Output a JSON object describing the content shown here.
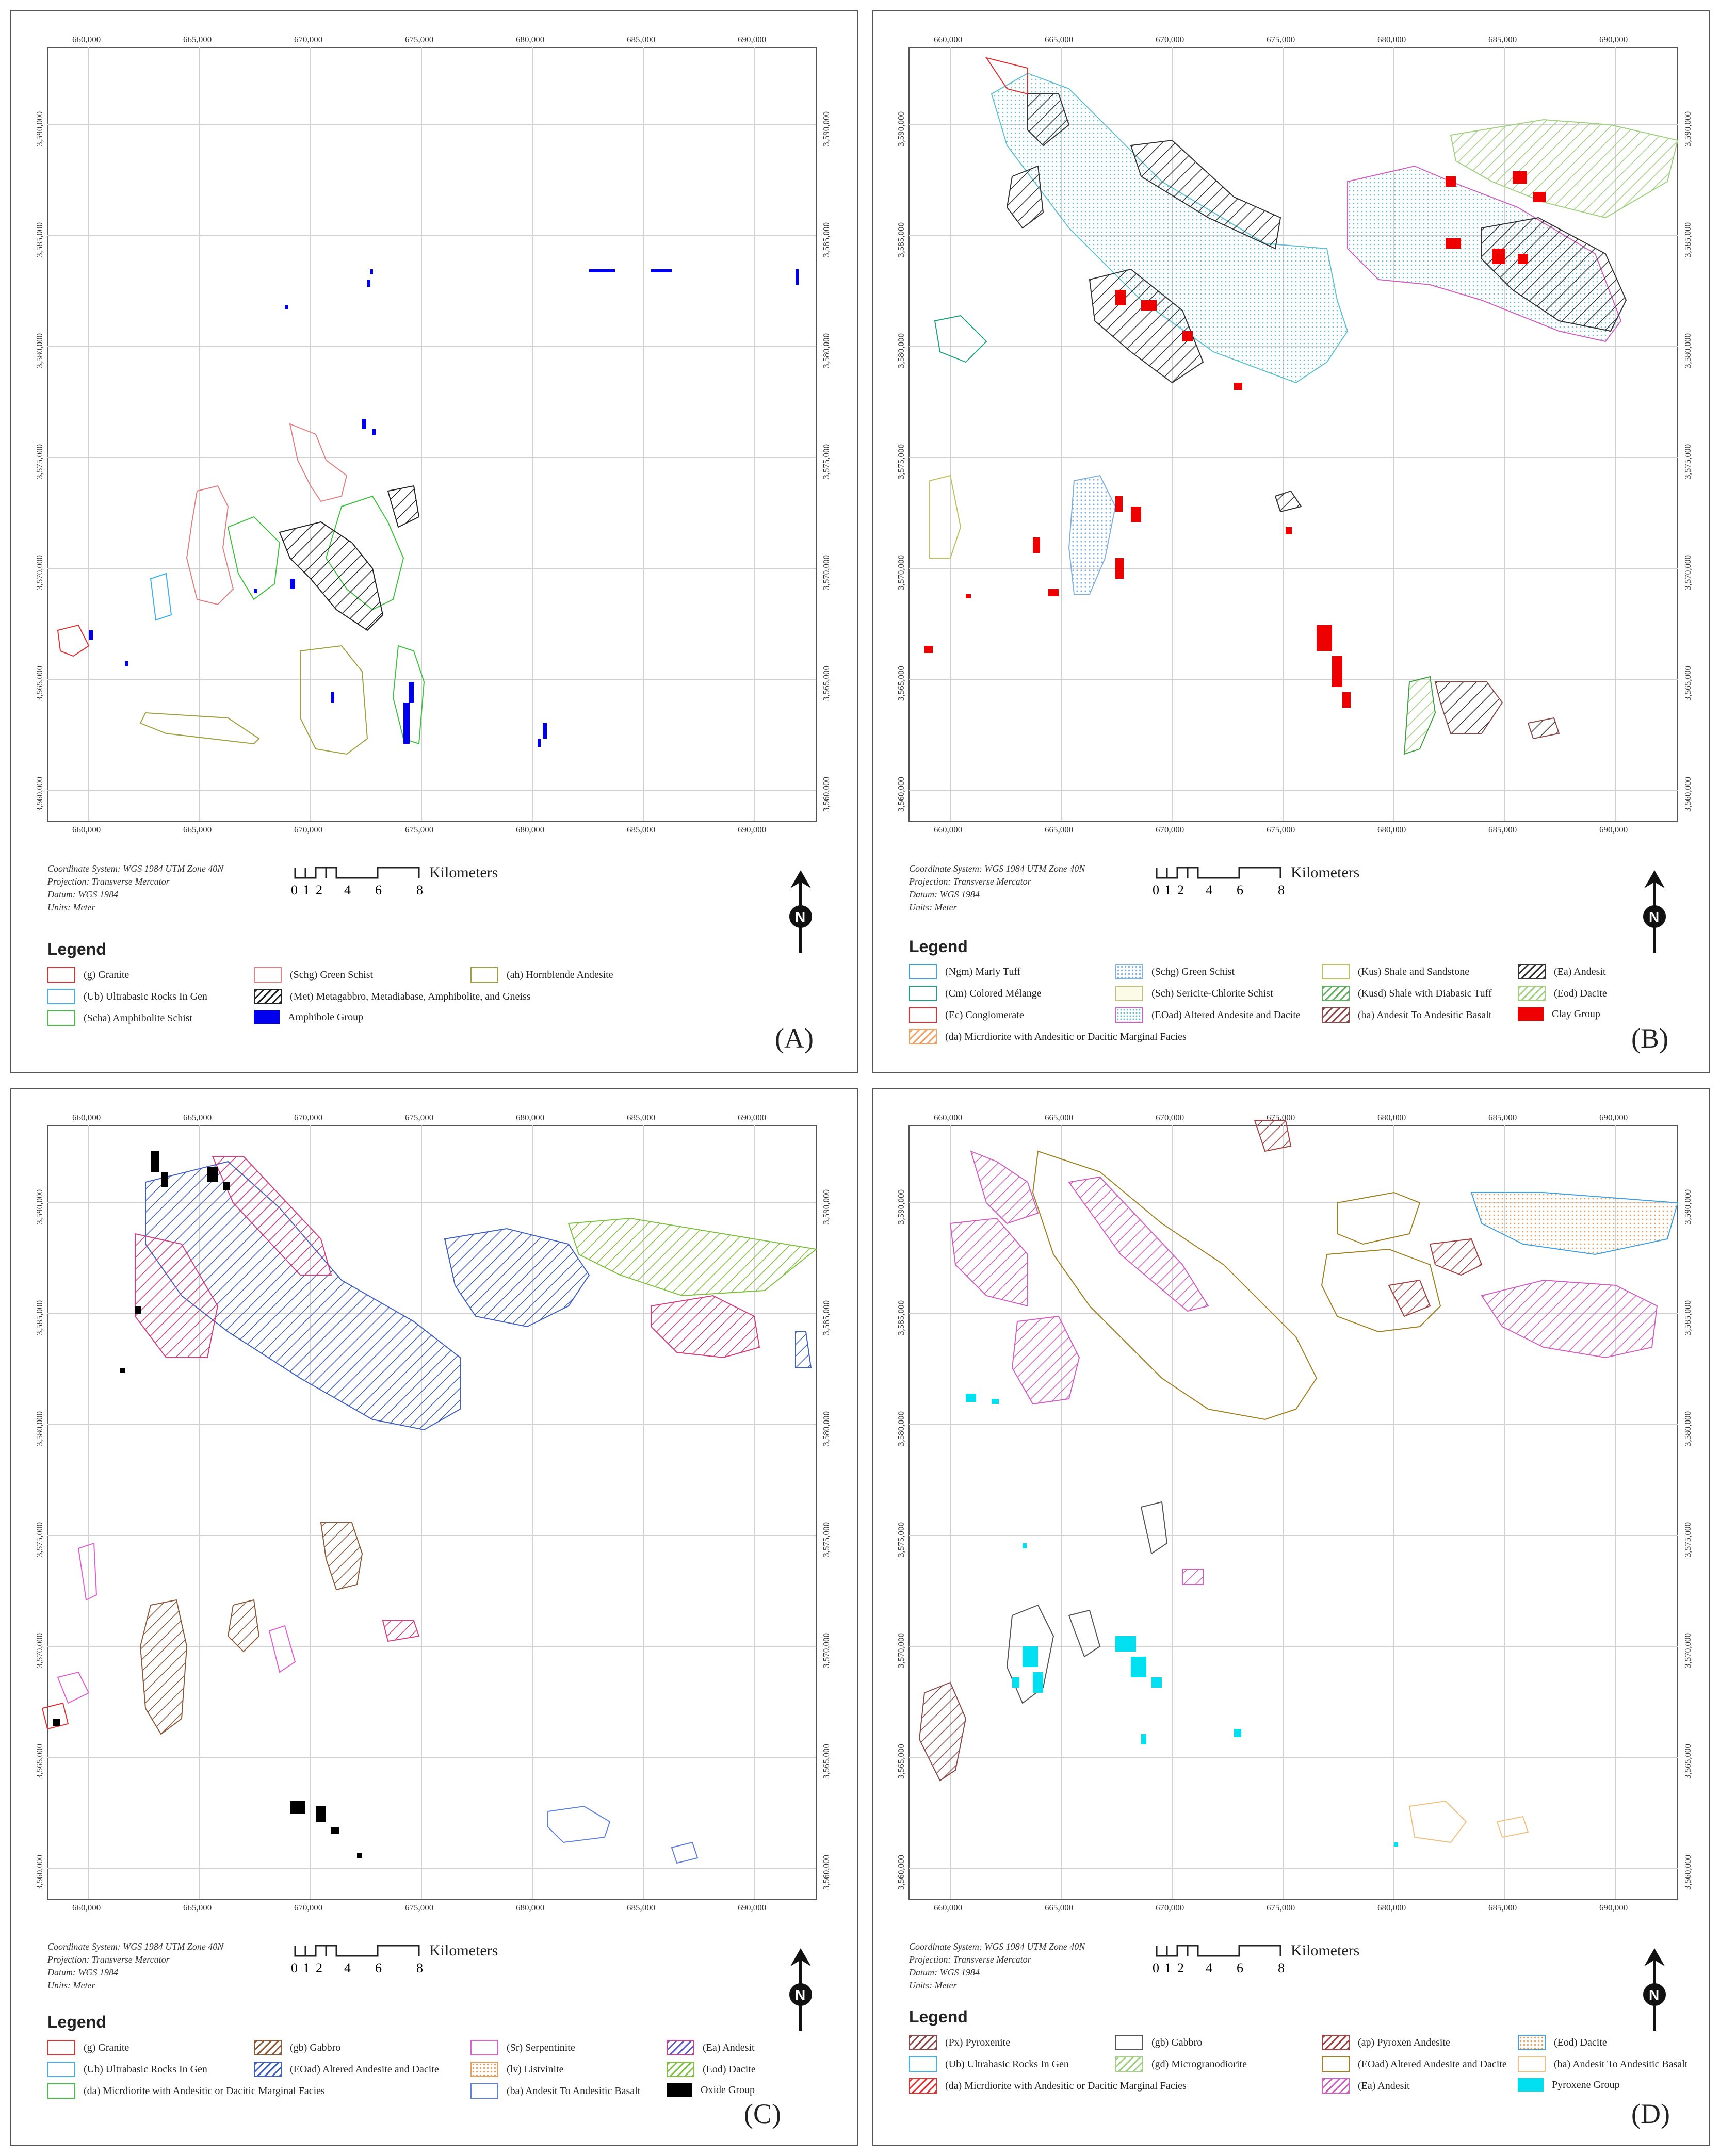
{
  "figure": {
    "panels": [
      {
        "id": "A",
        "tag": "(A)",
        "x_ticks": [
          "660,000",
          "665,000",
          "670,000",
          "675,000",
          "680,000",
          "685,000",
          "690,000"
        ],
        "y_ticks": [
          "3,590,000",
          "3,585,000",
          "3,580,000",
          "3,575,000",
          "3,570,000",
          "3,565,000",
          "3,560,000"
        ],
        "meta": [
          "Coordinate System: WGS 1984 UTM Zone 40N",
          "Projection: Transverse Mercator",
          "Datum: WGS 1984",
          "Units: Meter"
        ],
        "scale_labels": [
          "0",
          "1",
          "2",
          "4",
          "6",
          "8"
        ],
        "scale_unit": "Kilometers",
        "north": "N",
        "legend_title": "Legend",
        "legend": [
          {
            "label": "(g) Granite",
            "color": "#e03030",
            "pattern": "outline"
          },
          {
            "label": "(Ub) Ultrabasic Rocks In Gen",
            "color": "#40b0e8",
            "pattern": "outline"
          },
          {
            "label": "(Scha) Amphibolite Schist",
            "color": "#40c040",
            "pattern": "outline"
          },
          {
            "label": "(Schg) Green Schist",
            "color": "#e08080",
            "pattern": "outline"
          },
          {
            "label": "(Met) Metagabbro, Metadiabase, Amphibolite, and Gneiss",
            "color": "#222222",
            "pattern": "hatch"
          },
          {
            "label": "Amphibole Group",
            "color": "#0000ee",
            "pattern": "solid"
          },
          {
            "label": "(ah) Hornblende Andesite",
            "color": "#a0a040",
            "pattern": "outline"
          }
        ]
      },
      {
        "id": "B",
        "tag": "(B)",
        "x_ticks": [
          "660,000",
          "665,000",
          "670,000",
          "675,000",
          "680,000",
          "685,000",
          "690,000"
        ],
        "y_ticks": [
          "3,590,000",
          "3,585,000",
          "3,580,000",
          "3,575,000",
          "3,570,000",
          "3,565,000",
          "3,560,000"
        ],
        "meta": [
          "Coordinate System: WGS 1984 UTM Zone 40N",
          "Projection: Transverse Mercator",
          "Datum: WGS 1984",
          "Units: Meter"
        ],
        "scale_labels": [
          "0",
          "1",
          "2",
          "4",
          "6",
          "8"
        ],
        "scale_unit": "Kilometers",
        "north": "N",
        "legend_title": "Legend",
        "legend": [
          {
            "label": "(Ngm) Marly Tuff",
            "color": "#40a0e0",
            "pattern": "outline"
          },
          {
            "label": "(Cm) Colored Mélange",
            "color": "#20a080",
            "pattern": "outline"
          },
          {
            "label": "(Ec) Conglomerate",
            "color": "#e03030",
            "pattern": "outline"
          },
          {
            "label": "(da) Micrdiorite with Andesitic or Dacitic Marginal Facies",
            "color": "#f0a060",
            "pattern": "hatch"
          },
          {
            "label": "(Schg) Green Schist",
            "color": "#80b0e0",
            "pattern": "dots"
          },
          {
            "label": "(Sch) Sericite-Chlorite Schist",
            "color": "#c0c080",
            "pattern": "outline"
          },
          {
            "label": "(EOad) Altered Andesite and Dacite",
            "color": "#60c0d0",
            "pattern": "dots"
          },
          {
            "label": "(Kus) Shale and Sandstone",
            "color": "#c0c060",
            "pattern": "outline"
          },
          {
            "label": "(Kusd) Shale with Diabasic Tuff",
            "color": "#60b060",
            "pattern": "hatch"
          },
          {
            "label": "(ba) Andesit To Andesitic Basalt",
            "color": "#8b4a4a",
            "pattern": "hatch"
          },
          {
            "label": "(Ea) Andesit",
            "color": "#333333",
            "pattern": "hatch"
          },
          {
            "label": "(Eod) Dacite",
            "color": "#a0d080",
            "pattern": "hatch"
          },
          {
            "label": "Clay Group",
            "color": "#ee0000",
            "pattern": "solid"
          }
        ]
      },
      {
        "id": "C",
        "tag": "(C)",
        "x_ticks": [
          "660,000",
          "665,000",
          "670,000",
          "675,000",
          "680,000",
          "685,000",
          "690,000"
        ],
        "y_ticks": [
          "3,590,000",
          "3,585,000",
          "3,580,000",
          "3,575,000",
          "3,570,000",
          "3,565,000",
          "3,560,000"
        ],
        "meta": [
          "Coordinate System: WGS 1984 UTM Zone 40N",
          "Projection: Transverse Mercator",
          "Datum: WGS 1984",
          "Units: Meter"
        ],
        "scale_labels": [
          "0",
          "1",
          "2",
          "4",
          "6",
          "8"
        ],
        "scale_unit": "Kilometers",
        "north": "N",
        "legend_title": "Legend",
        "legend": [
          {
            "label": "(g) Granite",
            "color": "#e03030",
            "pattern": "outline"
          },
          {
            "label": "(Ub) Ultrabasic Rocks In Gen",
            "color": "#40b0e8",
            "pattern": "outline"
          },
          {
            "label": "(da) Micrdiorite with Andesitic or Dacitic Marginal Facies",
            "color": "#40c040",
            "pattern": "outline"
          },
          {
            "label": "(gb) Gabbro",
            "color": "#8b5a3a",
            "pattern": "hatch"
          },
          {
            "label": "(EOad) Altered Andesite and Dacite",
            "color": "#4060c0",
            "pattern": "hatch"
          },
          {
            "label": "(Sr) Serpentinite",
            "color": "#e060d0",
            "pattern": "outline"
          },
          {
            "label": "(lv) Listvinite",
            "color": "#e0a060",
            "pattern": "dots"
          },
          {
            "label": "(ba) Andesit To Andesitic Basalt",
            "color": "#6080e0",
            "pattern": "outline"
          },
          {
            "label": "(Ea) Andesit",
            "color": "#d04080",
            "pattern": "hatch"
          },
          {
            "label": "(Eod) Dacite",
            "color": "#80c040",
            "pattern": "hatch"
          },
          {
            "label": "Oxide Group",
            "color": "#000000",
            "pattern": "solid"
          }
        ]
      },
      {
        "id": "D",
        "tag": "(D)",
        "x_ticks": [
          "660,000",
          "665,000",
          "670,000",
          "675,000",
          "680,000",
          "685,000",
          "690,000"
        ],
        "y_ticks": [
          "3,590,000",
          "3,585,000",
          "3,580,000",
          "3,575,000",
          "3,570,000",
          "3,565,000",
          "3,560,000"
        ],
        "meta": [
          "Coordinate System: WGS 1984 UTM Zone 40N",
          "Projection: Transverse Mercator",
          "Datum: WGS 1984",
          "Units: Meter"
        ],
        "scale_labels": [
          "0",
          "1",
          "2",
          "4",
          "6",
          "8"
        ],
        "scale_unit": "Kilometers",
        "north": "N",
        "legend_title": "Legend",
        "legend": [
          {
            "label": "(Px) Pyroxenite",
            "color": "#8b4a4a",
            "pattern": "hatch"
          },
          {
            "label": "(Ub) Ultrabasic Rocks In Gen",
            "color": "#40b0e8",
            "pattern": "outline"
          },
          {
            "label": "(da) Micrdiorite with Andesitic or Dacitic Marginal Facies",
            "color": "#e03030",
            "pattern": "hatch"
          },
          {
            "label": "(gb) Gabbro",
            "color": "#555555",
            "pattern": "outline"
          },
          {
            "label": "(gd) Microgranodiorite",
            "color": "#a0d080",
            "pattern": "hatch"
          },
          {
            "label": "(Ea) Andesit",
            "color": "#d060c0",
            "pattern": "hatch"
          },
          {
            "label": "(ap) Pyroxen Andesite",
            "color": "#a04040",
            "pattern": "hatch"
          },
          {
            "label": "(EOad) Altered Andesite and Dacite",
            "color": "#a08020",
            "pattern": "outline"
          },
          {
            "label": "(Eod) Dacite",
            "color": "#e0a060",
            "pattern": "dots"
          },
          {
            "label": "(ba) Andesit To Andesitic Basalt",
            "color": "#f0c080",
            "pattern": "outline"
          },
          {
            "label": "Pyroxene Group",
            "color": "#00e0f0",
            "pattern": "solid"
          }
        ]
      }
    ]
  }
}
